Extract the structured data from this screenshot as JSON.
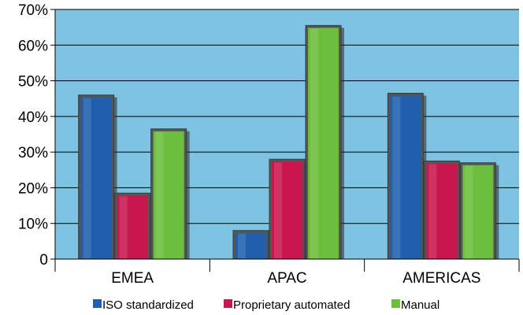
{
  "chart_data": {
    "type": "bar",
    "title": "",
    "xlabel": "",
    "ylabel": "",
    "categories": [
      "EMEA",
      "APAC",
      "AMERICAS"
    ],
    "series": [
      {
        "name": "ISO standardized",
        "color": "#1f5fae",
        "values": [
          0.46,
          0.08,
          0.465
        ]
      },
      {
        "name": "Proprietary automated",
        "color": "#c8174f",
        "values": [
          0.185,
          0.28,
          0.275
        ]
      },
      {
        "name": "Manual",
        "color": "#6cbf3c",
        "values": [
          0.365,
          0.655,
          0.27
        ]
      }
    ],
    "ylim": [
      0,
      0.7
    ],
    "yticks": [
      "0",
      "10%",
      "20%",
      "30%",
      "40%",
      "50%",
      "60%",
      "70%"
    ],
    "grid": true,
    "legend_position": "bottom",
    "plot_background": "#7ec4e2"
  }
}
